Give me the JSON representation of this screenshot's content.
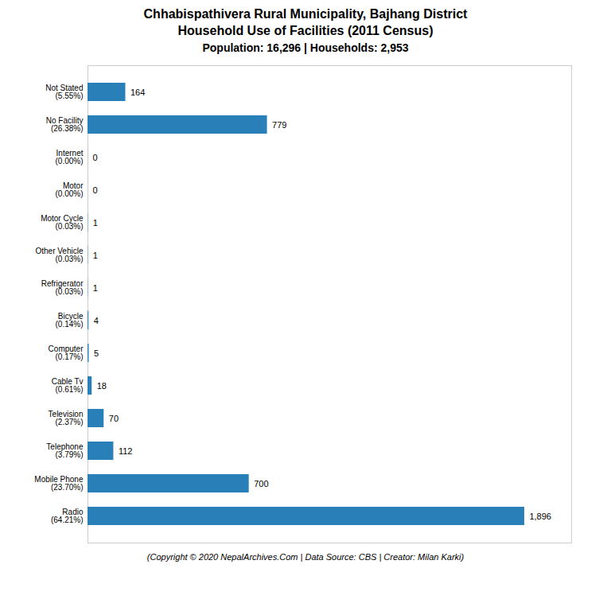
{
  "chart_data": {
    "type": "bar",
    "orientation": "horizontal",
    "title": "Chhabispathivera Rural Municipality, Bajhang District\nHousehold Use of Facilities (2011 Census)",
    "subtitle": "Population: 16,296 | Households: 2,953",
    "caption": "(Copyright © 2020 NepalArchives.Com | Data Source: CBS | Creator: Milan Karki)",
    "categories": [
      "Not Stated\n(5.55%)",
      "No Facility\n(26.38%)",
      "Internet\n(0.00%)",
      "Motor\n(0.00%)",
      "Motor Cycle\n(0.03%)",
      "Other Vehicle\n(0.03%)",
      "Refrigerator\n(0.03%)",
      "Bicycle\n(0.14%)",
      "Computer\n(0.17%)",
      "Cable Tv\n(0.61%)",
      "Television\n(2.37%)",
      "Telephone\n(3.79%)",
      "Mobile Phone\n(23.70%)",
      "Radio\n(64.21%)"
    ],
    "values": [
      164,
      779,
      0,
      0,
      1,
      1,
      1,
      4,
      5,
      18,
      70,
      112,
      700,
      1896
    ],
    "value_labels": [
      "164",
      "779",
      "0",
      "0",
      "1",
      "1",
      "1",
      "4",
      "5",
      "18",
      "70",
      "112",
      "700",
      "1,896"
    ],
    "color": "#2980b9",
    "xlim": [
      0,
      2100
    ],
    "data_labels": true,
    "tick_labels": "y",
    "grid": false
  }
}
